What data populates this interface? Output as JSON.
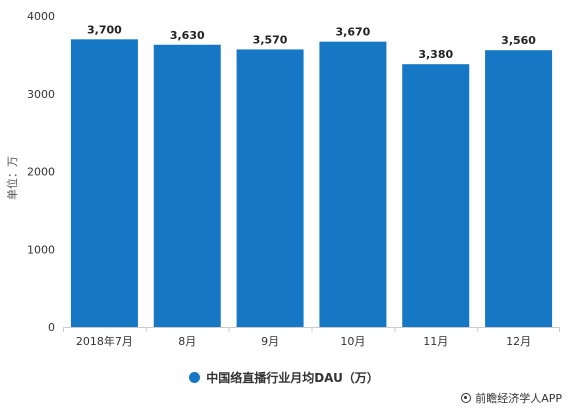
{
  "chart_data": {
    "type": "bar",
    "categories": [
      "2018年7月",
      "8月",
      "9月",
      "10月",
      "11月",
      "12月"
    ],
    "series": [
      {
        "name": "中国络直播行业月均DAU（万）",
        "values": [
          3700,
          3630,
          3570,
          3670,
          3380,
          3560
        ]
      }
    ],
    "data_labels": [
      "3,700",
      "3,630",
      "3,570",
      "3,670",
      "3,380",
      "3,560"
    ],
    "ylabel": "单位：万",
    "ylim": [
      0,
      4000
    ],
    "yticks": [
      0,
      1000,
      2000,
      3000,
      4000
    ],
    "grid": false,
    "legend_position": "bottom",
    "colors": {
      "bar": "#1677c4"
    }
  },
  "legend": {
    "label": "中国络直播行业月均DAU（万）"
  },
  "credit": {
    "label": "前瞻经济学人APP",
    "icon": "at-icon"
  }
}
